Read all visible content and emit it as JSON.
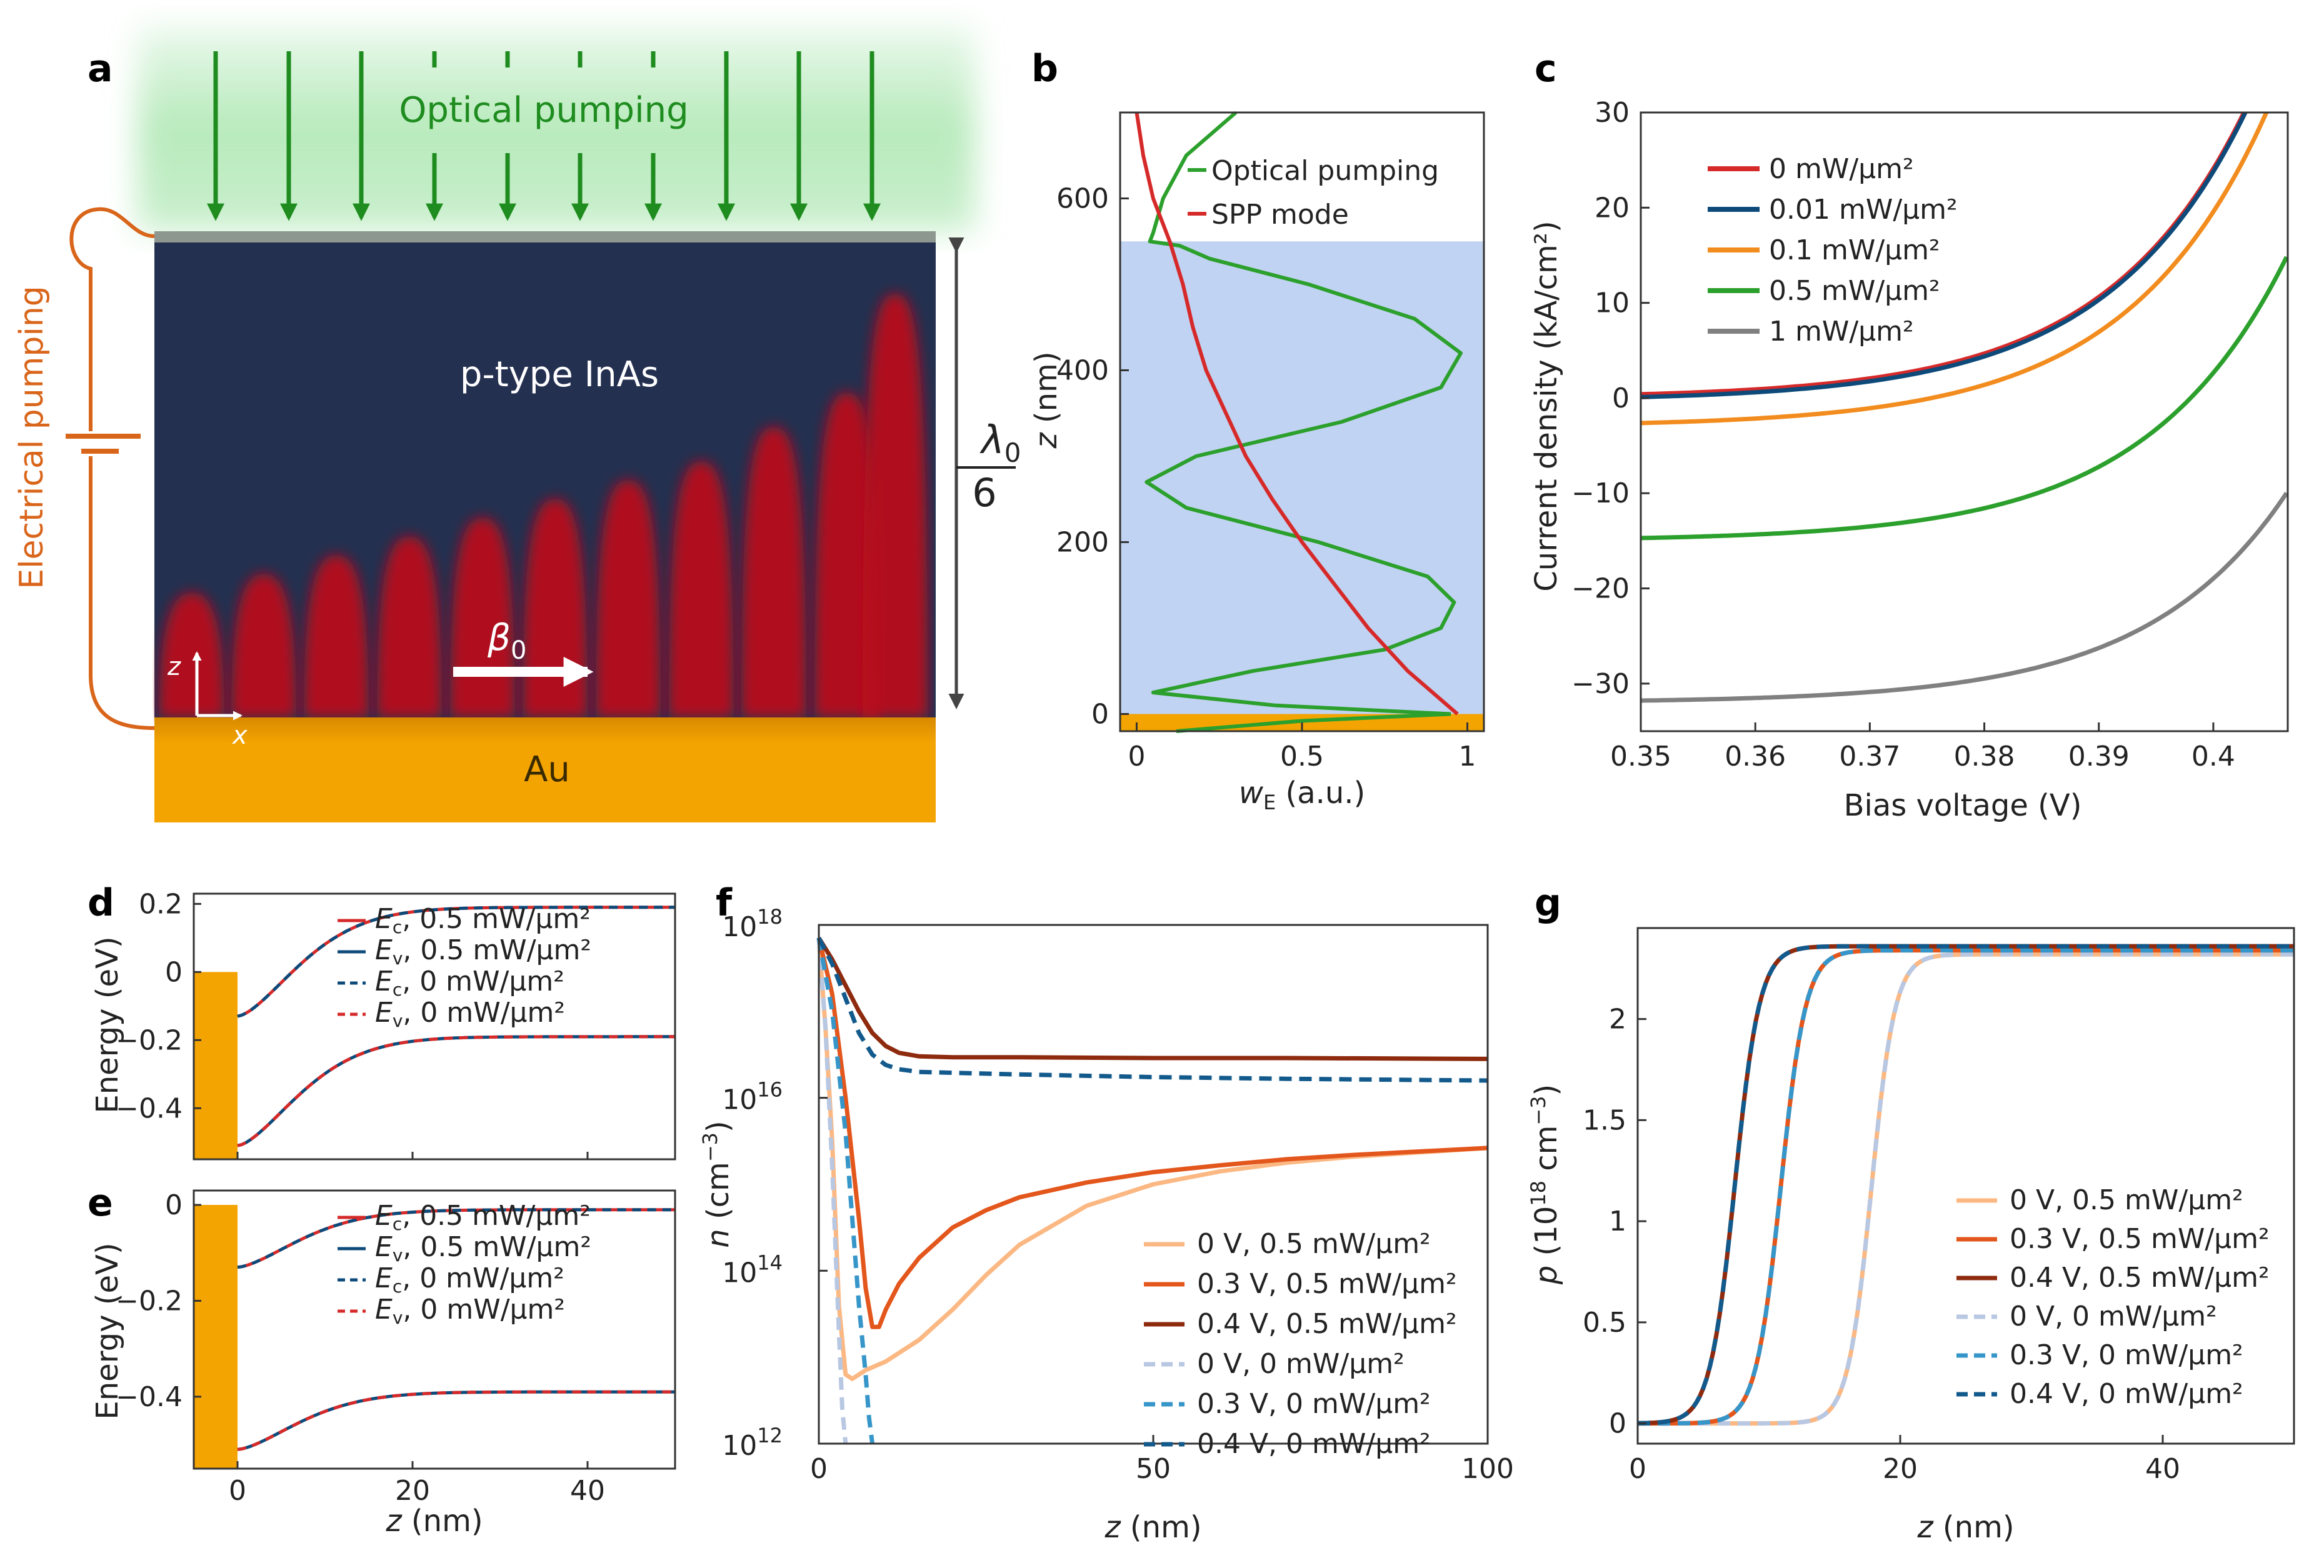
{
  "panel_letters": {
    "a": "a",
    "b": "b",
    "c": "c",
    "d": "d",
    "e": "e",
    "f": "f",
    "g": "g"
  },
  "colors": {
    "red": "#d62a2a",
    "navy": "#0d4a7a",
    "orange": "#f28c1e",
    "green": "#2ca02c",
    "gray": "#808080",
    "light_orange": "#fbb883",
    "mid_orange": "#e3561c",
    "dark_red": "#8e2a0e",
    "light_blue": "#b8c7e2",
    "mid_blue": "#3796c9",
    "dark_blue": "#135a8c",
    "inas": "#243050",
    "gold": "#f4a400",
    "pump_green": "#1e8c1e",
    "electrical": "#d9651a",
    "shade": "#c1d3f2"
  },
  "panel_a": {
    "optical_label": "Optical pumping",
    "electrical_label": "Electrical pumping",
    "inas_label": "p-type InAs",
    "au_label": "Au",
    "beta_label": "β",
    "beta_sub": "0",
    "lambda_label": "λ",
    "lambda_sub": "0",
    "lambda_den": "6",
    "axis_z": "z",
    "axis_x": "x",
    "icons": [
      "pump-arrow-icon",
      "battery-icon",
      "wavevector-arrow-icon"
    ]
  },
  "chart_data": [
    {
      "id": "b",
      "type": "line",
      "xlabel": "w",
      "xlabel_sub": "E",
      "xlabel_unit": " (a.u.)",
      "ylabel": "z",
      "ylabel_unit": " (nm)",
      "xlim": [
        -0.05,
        1.05
      ],
      "ylim": [
        -20,
        700
      ],
      "x_ticks": [
        "0",
        "0.5",
        "1"
      ],
      "y_ticks": [
        "0",
        "200",
        "400",
        "600"
      ],
      "legend": [
        "Optical pumping",
        "SPP mode"
      ],
      "shaded_region_z": [
        0,
        550
      ],
      "series": [
        {
          "name": "Optical pumping",
          "z": [
            0,
            10,
            25,
            50,
            75,
            100,
            130,
            160,
            200,
            240,
            270,
            300,
            340,
            380,
            420,
            460,
            500,
            530,
            545,
            550,
            560,
            600,
            650,
            700
          ],
          "w": [
            0.95,
            0.42,
            0.05,
            0.35,
            0.75,
            0.92,
            0.96,
            0.88,
            0.55,
            0.15,
            0.03,
            0.18,
            0.62,
            0.92,
            0.98,
            0.84,
            0.52,
            0.22,
            0.13,
            0.04,
            0.05,
            0.08,
            0.15,
            0.3
          ]
        },
        {
          "name": "SPP mode",
          "z": [
            0,
            50,
            100,
            150,
            200,
            250,
            300,
            350,
            400,
            450,
            500,
            550,
            600,
            650,
            700
          ],
          "w": [
            0.97,
            0.82,
            0.7,
            0.6,
            0.5,
            0.41,
            0.33,
            0.27,
            0.21,
            0.17,
            0.14,
            0.1,
            0.05,
            0.02,
            0.0
          ]
        }
      ]
    },
    {
      "id": "c",
      "type": "line",
      "xlabel": "Bias voltage (V)",
      "ylabel": "Current density (kA/cm²)",
      "xlim": [
        0.35,
        0.4065
      ],
      "ylim": [
        -35,
        30
      ],
      "x_ticks": [
        "0.35",
        "0.36",
        "0.37",
        "0.38",
        "0.39",
        "0.4"
      ],
      "y_ticks": [
        "−30",
        "−20",
        "−10",
        "0",
        "10",
        "20",
        "30"
      ],
      "legend": [
        "0 mW/μm²",
        "0.01 mW/μm²",
        "0.1 mW/μm²",
        "0.5 mW/μm²",
        "1 mW/μm²"
      ],
      "series": [
        {
          "name": "0 mW/μm²",
          "offset": 0.0,
          "shift": 0.0
        },
        {
          "name": "0.01 mW/μm²",
          "offset": -0.3,
          "shift": 0.0
        },
        {
          "name": "0.1 mW/μm²",
          "offset": -3.0,
          "shift": 0.0008
        },
        {
          "name": "0.5 mW/μm²",
          "offset": -15.0,
          "shift": 0.0038
        },
        {
          "name": "1 mW/μm²",
          "offset": -32.0,
          "shift": 0.0075
        }
      ]
    },
    {
      "id": "d",
      "type": "line",
      "ylabel": "Energy (eV)",
      "xlim": [
        -5,
        50
      ],
      "ylim": [
        -0.55,
        0.23
      ],
      "x_ticks": [
        "0",
        "20",
        "40"
      ],
      "y_ticks": [
        "0.2",
        "0",
        "−0.2",
        "−0.4"
      ],
      "legend": [
        {
          "sym": "E",
          "sub": "c",
          "text": ", 0.5 mW/μm²"
        },
        {
          "sym": "E",
          "sub": "v",
          "text": ", 0.5 mW/μm²"
        },
        {
          "sym": "E",
          "sub": "c",
          "text": ", 0 mW/μm²"
        },
        {
          "sym": "E",
          "sub": "v",
          "text": ", 0 mW/μm²"
        }
      ],
      "bands": {
        "Ec_start": -0.13,
        "Ec_end": 0.19,
        "Ev_start": -0.51,
        "Ev_end": -0.19
      }
    },
    {
      "id": "e",
      "type": "line",
      "ylabel": "Energy (eV)",
      "xlabel": "z",
      "xlabel_unit": " (nm)",
      "xlim": [
        -5,
        50
      ],
      "ylim": [
        -0.55,
        0.03
      ],
      "x_ticks": [
        "0",
        "20",
        "40"
      ],
      "y_ticks": [
        "0",
        "−0.2",
        "−0.4"
      ],
      "legend": [
        {
          "sym": "E",
          "sub": "c",
          "text": ", 0.5 mW/μm²"
        },
        {
          "sym": "E",
          "sub": "v",
          "text": ", 0.5 mW/μm²"
        },
        {
          "sym": "E",
          "sub": "c",
          "text": ", 0 mW/μm²"
        },
        {
          "sym": "E",
          "sub": "v",
          "text": ", 0 mW/μm²"
        }
      ],
      "bands": {
        "Ec_start": -0.13,
        "Ec_end": -0.01,
        "Ev_start": -0.51,
        "Ev_end": -0.39
      }
    },
    {
      "id": "f",
      "type": "line",
      "yscale": "log",
      "xlabel": "z",
      "xlabel_unit": " (nm)",
      "ylabel": "n",
      "ylabel_unit": " (cm",
      "xlim": [
        0,
        100
      ],
      "ylim_log10": [
        12,
        18
      ],
      "x_ticks": [
        "0",
        "50",
        "100"
      ],
      "y_ticks": [
        {
          "base": "10",
          "exp": "12"
        },
        {
          "base": "10",
          "exp": "14"
        },
        {
          "base": "10",
          "exp": "16"
        },
        {
          "base": "10",
          "exp": "18"
        }
      ],
      "legend": [
        "0 V, 0.5 mW/μm²",
        "0.3 V, 0.5 mW/μm²",
        "0.4 V, 0.5 mW/μm²",
        "0 V, 0 mW/μm²",
        "0.3 V, 0 mW/μm²",
        "0.4 V, 0 mW/μm²"
      ],
      "series": [
        {
          "name": "0 V, 0.5 mW/μm²",
          "x": [
            0,
            1,
            2,
            3,
            4,
            5,
            7,
            10,
            15,
            20,
            25,
            30,
            40,
            50,
            60,
            70,
            80,
            90,
            100
          ],
          "log_n": [
            17.85,
            16.8,
            15.5,
            13.6,
            12.8,
            12.75,
            12.85,
            12.95,
            13.2,
            13.55,
            13.95,
            14.3,
            14.75,
            15.0,
            15.15,
            15.25,
            15.32,
            15.37,
            15.42
          ]
        },
        {
          "name": "0.3 V, 0.5 mW/μm²",
          "x": [
            0,
            2,
            4,
            6,
            7,
            8,
            9,
            10,
            12,
            15,
            20,
            25,
            30,
            40,
            50,
            60,
            70,
            80,
            90,
            100
          ],
          "log_n": [
            17.85,
            17.2,
            16.0,
            14.6,
            13.8,
            13.35,
            13.35,
            13.55,
            13.85,
            14.15,
            14.5,
            14.7,
            14.85,
            15.02,
            15.14,
            15.22,
            15.29,
            15.34,
            15.38,
            15.42
          ]
        },
        {
          "name": "0.4 V, 0.5 mW/μm²",
          "x": [
            0,
            2,
            4,
            6,
            8,
            10,
            12,
            15,
            20,
            30,
            50,
            70,
            100
          ],
          "log_n": [
            17.85,
            17.6,
            17.3,
            17.0,
            16.75,
            16.6,
            16.52,
            16.48,
            16.47,
            16.47,
            16.46,
            16.46,
            16.45
          ]
        },
        {
          "name": "0 V, 0 mW/μm²",
          "x": [
            0,
            1,
            2,
            3,
            3.5,
            4
          ],
          "log_n": [
            17.85,
            16.8,
            15.2,
            13.3,
            12.4,
            12.0
          ]
        },
        {
          "name": "0.3 V, 0 mW/μm²",
          "x": [
            0,
            2,
            4,
            5,
            6,
            7,
            7.5,
            8
          ],
          "log_n": [
            17.85,
            17.0,
            15.6,
            14.6,
            13.6,
            12.8,
            12.3,
            12.0
          ]
        },
        {
          "name": "0.4 V, 0 mW/μm²",
          "x": [
            0,
            2,
            4,
            6,
            8,
            10,
            12,
            15,
            20,
            30,
            50,
            70,
            100
          ],
          "log_n": [
            17.85,
            17.55,
            17.15,
            16.75,
            16.5,
            16.38,
            16.33,
            16.3,
            16.29,
            16.27,
            16.24,
            16.22,
            16.2
          ]
        }
      ]
    },
    {
      "id": "g",
      "type": "line",
      "xlabel": "z",
      "xlabel_unit": " (nm)",
      "ylabel": "p",
      "ylabel_unit": " (10",
      "xlim": [
        0,
        50
      ],
      "ylim": [
        -0.1,
        2.45
      ],
      "x_ticks": [
        "0",
        "20",
        "40"
      ],
      "y_ticks": [
        "0",
        "0.5",
        "1",
        "1.5",
        "2"
      ],
      "legend": [
        "0 V, 0.5 mW/μm²",
        "0.3 V, 0.5 mW/μm²",
        "0.4 V, 0.5 mW/μm²",
        "0 V, 0 mW/μm²",
        "0.3 V, 0 mW/μm²",
        "0.4 V, 0 mW/μm²"
      ],
      "series": [
        {
          "name": "0 V",
          "z0": 17.8,
          "w": 0.9,
          "plateau": 2.32
        },
        {
          "name": "0.3 V",
          "z0": 10.9,
          "w": 0.95,
          "plateau": 2.34
        },
        {
          "name": "0.4 V",
          "z0": 7.4,
          "w": 0.95,
          "plateau": 2.36
        }
      ]
    }
  ]
}
